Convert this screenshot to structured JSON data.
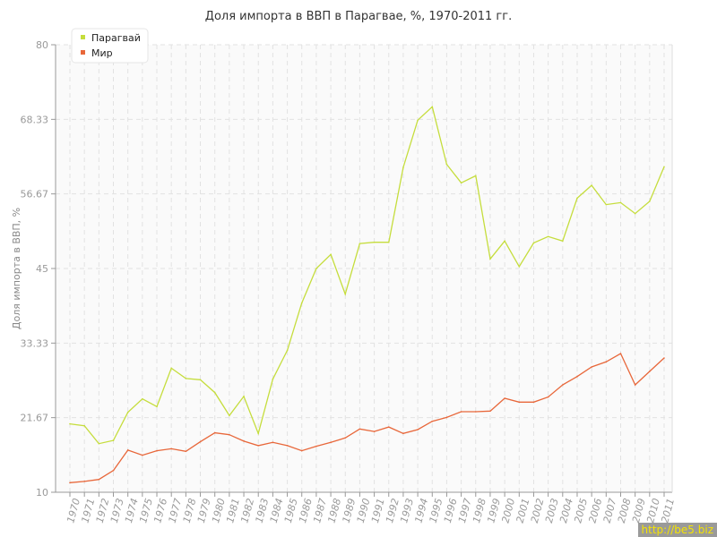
{
  "chart_data": {
    "type": "line",
    "title": "Доля импорта в ВВП в Парагвае, %, 1970-2011 гг.",
    "xlabel": "",
    "ylabel": "Доля импорта в ВВП, %",
    "ylim": [
      10,
      80
    ],
    "yticks": [
      "10",
      "21.67",
      "33.33",
      "45",
      "56.67",
      "68.33",
      "80"
    ],
    "x": [
      1970,
      1971,
      1972,
      1973,
      1974,
      1975,
      1976,
      1977,
      1978,
      1979,
      1980,
      1981,
      1982,
      1983,
      1984,
      1985,
      1986,
      1987,
      1988,
      1989,
      1990,
      1991,
      1992,
      1993,
      1994,
      1995,
      1996,
      1997,
      1998,
      1999,
      2000,
      2001,
      2002,
      2003,
      2004,
      2005,
      2006,
      2007,
      2008,
      2009,
      2010,
      2011
    ],
    "grid": true,
    "legend": "top-left",
    "series": [
      {
        "name": "Парагвай",
        "color": "#c5dd3c",
        "values": [
          20.7,
          20.4,
          17.6,
          18.1,
          22.5,
          24.6,
          23.4,
          29.4,
          27.8,
          27.6,
          25.6,
          22.0,
          25.0,
          19.2,
          27.7,
          32.2,
          39.6,
          45.0,
          47.2,
          41.0,
          48.9,
          49.1,
          49.1,
          60.8,
          68.2,
          70.3,
          61.3,
          58.4,
          59.5,
          46.5,
          49.3,
          45.3,
          49.0,
          50.0,
          49.3,
          56.0,
          58.0,
          55.0,
          55.3,
          53.6,
          55.5,
          60.9
        ]
      },
      {
        "name": "Мир",
        "color": "#e8673a",
        "values": [
          11.5,
          11.7,
          12.0,
          13.4,
          16.6,
          15.8,
          16.5,
          16.8,
          16.4,
          17.9,
          19.3,
          19.0,
          18.0,
          17.3,
          17.8,
          17.3,
          16.5,
          17.2,
          17.8,
          18.5,
          19.9,
          19.5,
          20.2,
          19.2,
          19.8,
          21.1,
          21.7,
          22.6,
          22.6,
          22.7,
          24.7,
          24.1,
          24.1,
          24.9,
          26.8,
          28.1,
          29.6,
          30.4,
          31.7,
          26.8,
          28.9,
          31.0
        ]
      }
    ]
  },
  "watermark": "http://be5.biz"
}
